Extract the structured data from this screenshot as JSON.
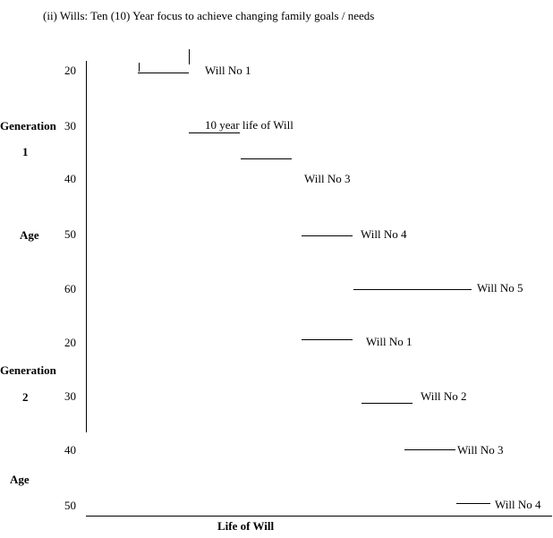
{
  "title": "(ii) Wills: Ten (10) Year focus to achieve changing family goals / needs",
  "x_axis_label": "Life of Will",
  "generation_1": {
    "label_line1": "Generation",
    "label_line2": "1",
    "age_label": "Age",
    "ages": [
      "20",
      "30",
      "40",
      "50",
      "60"
    ]
  },
  "generation_2": {
    "label_line1": "Generation",
    "label_line2": "2",
    "age_label": "Age",
    "ages": [
      "20",
      "30",
      "40",
      "50"
    ]
  },
  "will_labels": {
    "g1_will_1": "Will No 1",
    "g1_will_2": "10 year life of Will",
    "g1_will_3": "Will No 3",
    "g1_will_4": "Will No 4",
    "g1_will_5": "Will No 5",
    "g2_will_1": "Will No 1",
    "g2_will_2": "Will No 2",
    "g2_will_3": "Will No 3",
    "g2_will_4": "Will No 4"
  }
}
